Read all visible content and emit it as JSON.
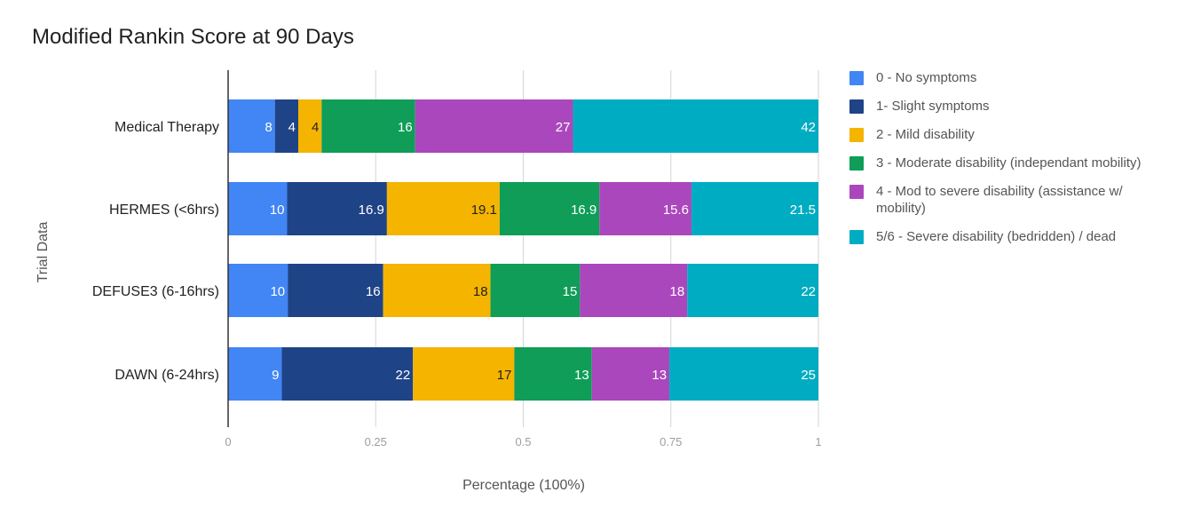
{
  "chart_data": {
    "type": "bar",
    "orientation": "horizontal",
    "stacked": "percent",
    "title": "Modified Rankin Score at 90 Days",
    "xlabel": "Percentage (100%)",
    "ylabel": "Trial Data",
    "xlim": [
      0,
      1
    ],
    "x_ticks": [
      "0",
      "0.25",
      "0.5",
      "0.75",
      "1"
    ],
    "grid": "vertical",
    "legend_position": "right",
    "categories": [
      "Medical Therapy",
      "HERMES (<6hrs)",
      "DEFUSE3 (6-16hrs)",
      "DAWN (6-24hrs)"
    ],
    "series": [
      {
        "name": "0 - No symptoms",
        "color": "#4285f4",
        "values": [
          8,
          10,
          10,
          9
        ],
        "labels": [
          "8",
          "10",
          "10",
          "9"
        ],
        "label_color": "#ffffff"
      },
      {
        "name": "1- Slight symptoms",
        "color": "#1f4387",
        "values": [
          4,
          16.9,
          16,
          22
        ],
        "labels": [
          "4",
          "16.9",
          "16",
          "22"
        ],
        "label_color": "#ffffff"
      },
      {
        "name": "2 - Mild disability",
        "color": "#f4b400",
        "values": [
          4,
          19.1,
          18,
          17
        ],
        "labels": [
          "4",
          "19.1",
          "18",
          "17"
        ],
        "label_color": "#222222"
      },
      {
        "name": "3 - Moderate disability (independant mobility)",
        "color": "#0f9d58",
        "values": [
          16,
          16.9,
          15,
          13
        ],
        "labels": [
          "16",
          "16.9",
          "15",
          "13"
        ],
        "label_color": "#ffffff"
      },
      {
        "name": "4 - Mod to severe disability (assistance w/ mobility)",
        "color": "#ab47bc",
        "values": [
          27,
          15.6,
          18,
          13
        ],
        "labels": [
          "27",
          "15.6",
          "18",
          "13"
        ],
        "label_color": "#ffffff"
      },
      {
        "name": "5/6 - Severe disability (bedridden) / dead",
        "color": "#00acc1",
        "values": [
          42,
          21.5,
          22,
          25
        ],
        "labels": [
          "42",
          "21.5",
          "22",
          "25"
        ],
        "label_color": "#ffffff"
      }
    ]
  }
}
